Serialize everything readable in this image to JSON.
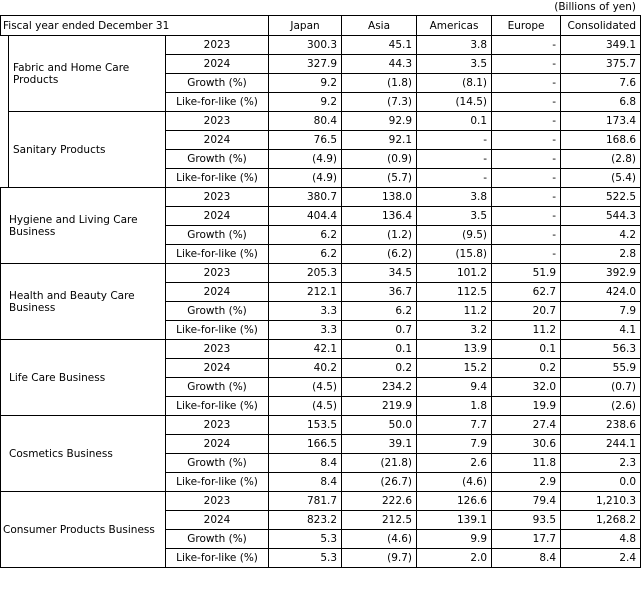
{
  "unit_label": "(Billions of yen)",
  "headers": {
    "first": "Fiscal year ended December 31",
    "cols": [
      "Japan",
      "Asia",
      "Americas",
      "Europe",
      "Consolidated"
    ]
  },
  "row_labels": [
    "2023",
    "2024",
    "Growth (%)",
    "Like-for-like (%)"
  ],
  "segments": {
    "fabric_home": {
      "name": "Fabric and Home Care Products",
      "rows": [
        [
          "300.3",
          "45.1",
          "3.8",
          "-",
          "349.1"
        ],
        [
          "327.9",
          "44.3",
          "3.5",
          "-",
          "375.7"
        ],
        [
          "9.2",
          "(1.8)",
          "(8.1)",
          "-",
          "7.6"
        ],
        [
          "9.2",
          "(7.3)",
          "(14.5)",
          "-",
          "6.8"
        ]
      ]
    },
    "sanitary": {
      "name": "Sanitary Products",
      "rows": [
        [
          "80.4",
          "92.9",
          "0.1",
          "-",
          "173.4"
        ],
        [
          "76.5",
          "92.1",
          "-",
          "-",
          "168.6"
        ],
        [
          "(4.9)",
          "(0.9)",
          "-",
          "-",
          "(2.8)"
        ],
        [
          "(4.9)",
          "(5.7)",
          "-",
          "-",
          "(5.4)"
        ]
      ]
    },
    "hygiene": {
      "name": "Hygiene and Living Care Business",
      "rows": [
        [
          "380.7",
          "138.0",
          "3.8",
          "-",
          "522.5"
        ],
        [
          "404.4",
          "136.4",
          "3.5",
          "-",
          "544.3"
        ],
        [
          "6.2",
          "(1.2)",
          "(9.5)",
          "-",
          "4.2"
        ],
        [
          "6.2",
          "(6.2)",
          "(15.8)",
          "-",
          "2.8"
        ]
      ]
    },
    "health_beauty": {
      "name": "Health and Beauty Care Business",
      "rows": [
        [
          "205.3",
          "34.5",
          "101.2",
          "51.9",
          "392.9"
        ],
        [
          "212.1",
          "36.7",
          "112.5",
          "62.7",
          "424.0"
        ],
        [
          "3.3",
          "6.2",
          "11.2",
          "20.7",
          "7.9"
        ],
        [
          "3.3",
          "0.7",
          "3.2",
          "11.2",
          "4.1"
        ]
      ]
    },
    "life_care": {
      "name": "Life Care Business",
      "rows": [
        [
          "42.1",
          "0.1",
          "13.9",
          "0.1",
          "56.3"
        ],
        [
          "40.2",
          "0.2",
          "15.2",
          "0.2",
          "55.9"
        ],
        [
          "(4.5)",
          "234.2",
          "9.4",
          "32.0",
          "(0.7)"
        ],
        [
          "(4.5)",
          "219.9",
          "1.8",
          "19.9",
          "(2.6)"
        ]
      ]
    },
    "cosmetics": {
      "name": "Cosmetics Business",
      "rows": [
        [
          "153.5",
          "50.0",
          "7.7",
          "27.4",
          "238.6"
        ],
        [
          "166.5",
          "39.1",
          "7.9",
          "30.6",
          "244.1"
        ],
        [
          "8.4",
          "(21.8)",
          "2.6",
          "11.8",
          "2.3"
        ],
        [
          "8.4",
          "(26.7)",
          "(4.6)",
          "2.9",
          "0.0"
        ]
      ]
    },
    "consumer": {
      "name": "Consumer Products Business",
      "rows": [
        [
          "781.7",
          "222.6",
          "126.6",
          "79.4",
          "1,210.3"
        ],
        [
          "823.2",
          "212.5",
          "139.1",
          "93.5",
          "1,268.2"
        ],
        [
          "5.3",
          "(4.6)",
          "9.9",
          "17.7",
          "4.8"
        ],
        [
          "5.3",
          "(9.7)",
          "2.0",
          "8.4",
          "2.4"
        ]
      ]
    }
  }
}
